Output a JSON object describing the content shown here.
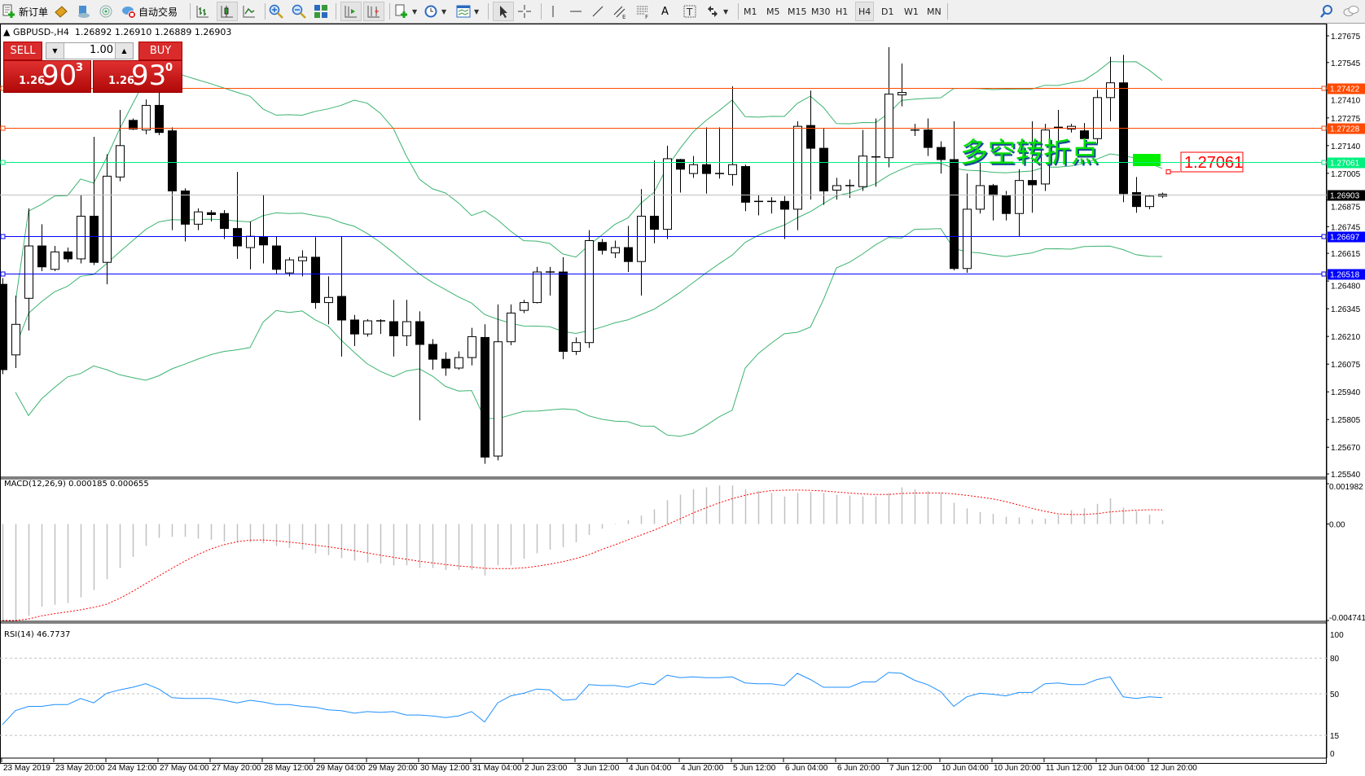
{
  "toolbar": {
    "new_order": {
      "label": "新订单",
      "icon": "new-order-icon"
    },
    "auto_trading": {
      "label": "自动交易",
      "icon": "auto-trading-icon"
    },
    "icons": [
      "market-watch-icon",
      "navigator-icon",
      "signals-icon",
      "bar-chart-icon",
      "candlestick-icon",
      "line-chart-icon",
      "zoom-in-icon",
      "zoom-out-icon",
      "tile-windows-icon",
      "chart-shift-icon",
      "autoscroll-icon",
      "indicators-icon",
      "periods-icon",
      "templates-icon",
      "cursor-icon",
      "crosshair-icon",
      "vertical-line-icon",
      "horizontal-line-icon",
      "trendline-icon",
      "equidistant-channel-icon",
      "fibonacci-icon",
      "text-icon",
      "text-label-icon",
      "arrows-icon",
      "search-icon",
      "chat-icon"
    ],
    "channel_sub": "E",
    "fibo_sub": "F",
    "text_glyph": "A",
    "label_glyph": "T",
    "timeframes": [
      "M1",
      "M5",
      "M15",
      "M30",
      "H1",
      "H4",
      "D1",
      "W1",
      "MN"
    ],
    "active_timeframe": "H4"
  },
  "header": {
    "symbol": "GBPUSD-,H4",
    "ohlc": "1.26892 1.26910 1.26889 1.26903"
  },
  "one_click": {
    "sell_label": "SELL",
    "buy_label": "BUY",
    "lot": "1.00",
    "sell": {
      "prefix": "1.26",
      "big": "90",
      "sup": "3"
    },
    "buy": {
      "prefix": "1.26",
      "big": "93",
      "sup": "0"
    }
  },
  "annotation": {
    "text": "多空转折点",
    "price_label": "1.27061",
    "color": "#00e000"
  },
  "macd_label": "MACD(12,26,9) 0.000185 0.000655",
  "rsi_label": "RSI(14) 46.7737",
  "chart_data": {
    "type": "candlestick",
    "symbol": "GBPUSD",
    "timeframe": "H4",
    "ylim": [
      1.2554,
      1.27675
    ],
    "price_ticks": [
      "1.27675",
      "1.27545",
      "1.27410",
      "1.27275",
      "1.27140",
      "1.27005",
      "1.26875",
      "1.26745",
      "1.26615",
      "1.26480",
      "1.26345",
      "1.26210",
      "1.26075",
      "1.25940",
      "1.25805",
      "1.25670",
      "1.25540"
    ],
    "time_labels": [
      "23 May 2019",
      "23 May 20:00",
      "24 May 12:00",
      "27 May 04:00",
      "27 May 20:00",
      "28 May 12:00",
      "29 May 04:00",
      "29 May 20:00",
      "30 May 12:00",
      "31 May 04:00",
      "2 Jun 23:00",
      "3 Jun 12:00",
      "4 Jun 04:00",
      "4 Jun 20:00",
      "5 Jun 12:00",
      "6 Jun 04:00",
      "6 Jun 20:00",
      "7 Jun 12:00",
      "10 Jun 04:00",
      "10 Jun 20:00",
      "11 Jun 12:00",
      "12 Jun 04:00",
      "12 Jun 20:00"
    ],
    "bars_per_time_label": 4,
    "ohlc": [
      [
        1.26464,
        1.26494,
        1.26026,
        1.26048
      ],
      [
        1.2612,
        1.26409,
        1.26056,
        1.26269
      ],
      [
        1.26396,
        1.26834,
        1.26239,
        1.26651
      ],
      [
        1.26651,
        1.26757,
        1.26528,
        1.26549
      ],
      [
        1.26537,
        1.26651,
        1.26528,
        1.26622
      ],
      [
        1.26622,
        1.26643,
        1.26571,
        1.26588
      ],
      [
        1.26588,
        1.26898,
        1.26566,
        1.26796
      ],
      [
        1.26796,
        1.27183,
        1.26558,
        1.26571
      ],
      [
        1.26571,
        1.27098,
        1.26464,
        1.26991
      ],
      [
        1.26987,
        1.27314,
        1.26966,
        1.2714
      ],
      [
        1.27263,
        1.27272,
        1.27216,
        1.27221
      ],
      [
        1.27216,
        1.27365,
        1.27195,
        1.27336
      ],
      [
        1.27336,
        1.27404,
        1.27191,
        1.27204
      ],
      [
        1.27212,
        1.27229,
        1.26728,
        1.26919
      ],
      [
        1.26919,
        1.26932,
        1.26673,
        1.26757
      ],
      [
        1.26757,
        1.26834,
        1.26728,
        1.26817
      ],
      [
        1.26813,
        1.26826,
        1.2677,
        1.26804
      ],
      [
        1.26809,
        1.26826,
        1.26685,
        1.26736
      ],
      [
        1.26736,
        1.27012,
        1.26588,
        1.26651
      ],
      [
        1.26643,
        1.2677,
        1.26537,
        1.26698
      ],
      [
        1.26694,
        1.26898,
        1.26566,
        1.26656
      ],
      [
        1.26651,
        1.26698,
        1.26515,
        1.26537
      ],
      [
        1.2652,
        1.26596,
        1.26503,
        1.26583
      ],
      [
        1.26579,
        1.2663,
        1.26503,
        1.26596
      ],
      [
        1.26596,
        1.26694,
        1.26345,
        1.26375
      ],
      [
        1.26375,
        1.26503,
        1.26269,
        1.264
      ],
      [
        1.26405,
        1.26698,
        1.26112,
        1.2629
      ],
      [
        1.2629,
        1.26315,
        1.26163,
        1.26222
      ],
      [
        1.26222,
        1.26294,
        1.26209,
        1.26286
      ],
      [
        1.26286,
        1.26294,
        1.26222,
        1.26286
      ],
      [
        1.26282,
        1.26388,
        1.26112,
        1.26213
      ],
      [
        1.26213,
        1.26388,
        1.26163,
        1.26282
      ],
      [
        1.26282,
        1.26332,
        1.25801,
        1.26171
      ],
      [
        1.26171,
        1.26197,
        1.26048,
        1.26099
      ],
      [
        1.26099,
        1.26133,
        1.26018,
        1.26056
      ],
      [
        1.26056,
        1.26137,
        1.26048,
        1.26107
      ],
      [
        1.26107,
        1.26252,
        1.26069,
        1.26209
      ],
      [
        1.26205,
        1.26269,
        1.25589,
        1.25622
      ],
      [
        1.25627,
        1.26366,
        1.25606,
        1.26184
      ],
      [
        1.26184,
        1.26366,
        1.26167,
        1.26324
      ],
      [
        1.26337,
        1.26388,
        1.26324,
        1.26375
      ],
      [
        1.26375,
        1.26549,
        1.26371,
        1.26524
      ],
      [
        1.26524,
        1.26549,
        1.26409,
        1.26524
      ],
      [
        1.26524,
        1.26596,
        1.26099,
        1.26137
      ],
      [
        1.26137,
        1.26205,
        1.2612,
        1.2618
      ],
      [
        1.2618,
        1.26728,
        1.26154,
        1.26677
      ],
      [
        1.26668,
        1.26685,
        1.26609,
        1.2663
      ],
      [
        1.26617,
        1.26677,
        1.26592,
        1.26643
      ],
      [
        1.26643,
        1.26749,
        1.26524,
        1.26575
      ],
      [
        1.26575,
        1.26928,
        1.26409,
        1.26796
      ],
      [
        1.26796,
        1.27068,
        1.26664,
        1.26732
      ],
      [
        1.26732,
        1.2714,
        1.26685,
        1.27076
      ],
      [
        1.27072,
        1.27076,
        1.26911,
        1.27025
      ],
      [
        1.27004,
        1.27089,
        1.26983,
        1.27047
      ],
      [
        1.27047,
        1.27229,
        1.26906,
        1.27004
      ],
      [
        1.27004,
        1.27229,
        1.26979,
        1.27004
      ],
      [
        1.26999,
        1.27429,
        1.26945,
        1.27047
      ],
      [
        1.27038,
        1.27047,
        1.26821,
        1.26864
      ],
      [
        1.26868,
        1.26898,
        1.268,
        1.26868
      ],
      [
        1.26868,
        1.26889,
        1.26809,
        1.26868
      ],
      [
        1.26868,
        1.26894,
        1.26685,
        1.2683
      ],
      [
        1.2683,
        1.27259,
        1.26728,
        1.27234
      ],
      [
        1.27238,
        1.27408,
        1.26877,
        1.27127
      ],
      [
        1.27127,
        1.27225,
        1.26851,
        1.26919
      ],
      [
        1.26923,
        1.26983,
        1.26877,
        1.26945
      ],
      [
        1.26945,
        1.26975,
        1.26885,
        1.26945
      ],
      [
        1.2694,
        1.27216,
        1.26919,
        1.27089
      ],
      [
        1.27085,
        1.27272,
        1.2694,
        1.27085
      ],
      [
        1.27081,
        1.2762,
        1.27034,
        1.27391
      ],
      [
        1.27387,
        1.2754,
        1.27331,
        1.27399
      ],
      [
        1.27216,
        1.27246,
        1.27187,
        1.27216
      ],
      [
        1.27216,
        1.27272,
        1.27089,
        1.27131
      ],
      [
        1.27131,
        1.27161,
        1.27004,
        1.27072
      ],
      [
        1.27072,
        1.27259,
        1.26532,
        1.26541
      ],
      [
        1.26541,
        1.27004,
        1.2652,
        1.2683
      ],
      [
        1.2683,
        1.27059,
        1.26809,
        1.26945
      ],
      [
        1.26945,
        1.26953,
        1.26775,
        1.26898
      ],
      [
        1.26898,
        1.26919,
        1.26775,
        1.26809
      ],
      [
        1.26809,
        1.27025,
        1.26698,
        1.2697
      ],
      [
        1.2697,
        1.27259,
        1.26813,
        1.26949
      ],
      [
        1.26953,
        1.27246,
        1.26919,
        1.27216
      ],
      [
        1.27229,
        1.27314,
        1.27131,
        1.27225
      ],
      [
        1.27221,
        1.27246,
        1.27204,
        1.27234
      ],
      [
        1.27212,
        1.2725,
        1.2714,
        1.27174
      ],
      [
        1.27174,
        1.27412,
        1.27149,
        1.27374
      ],
      [
        1.27374,
        1.27573,
        1.27259,
        1.27446
      ],
      [
        1.27446,
        1.27582,
        1.26864,
        1.26906
      ],
      [
        1.26911,
        1.26987,
        1.26813,
        1.26843
      ],
      [
        1.26843,
        1.26902,
        1.2683,
        1.26894
      ],
      [
        1.26894,
        1.26911,
        1.26885,
        1.26903
      ]
    ],
    "hlines": [
      {
        "price": 1.27422,
        "label": "1.27422",
        "color": "#ff4a00"
      },
      {
        "price": 1.27228,
        "label": "1.27228",
        "color": "#ff4a00"
      },
      {
        "price": 1.27061,
        "label": "1.27061",
        "color": "#00f080"
      },
      {
        "price": 1.26903,
        "label": "1.26903",
        "color": "#c0c0c0",
        "label_bg": "#000000"
      },
      {
        "price": 1.26697,
        "label": "1.26697",
        "color": "#0000ff"
      },
      {
        "price": 1.26518,
        "label": "1.26518",
        "color": "#0000ff"
      }
    ],
    "bollinger": {
      "period": 20,
      "deviation": 2,
      "color": "#3cb371"
    },
    "macd": {
      "ylim": [
        -0.004741,
        0.001982
      ],
      "tick_labels": [
        "0.001982",
        "0.00",
        "-0.004741"
      ],
      "hist_color": "#c0c0c0",
      "signal_color": "#ff0000",
      "main": [
        -0.00474,
        -0.00474,
        -0.00451,
        -0.00406,
        -0.00397,
        -0.00388,
        -0.00361,
        -0.00325,
        -0.00271,
        -0.00216,
        -0.00162,
        -0.00108,
        -0.00068,
        -0.00063,
        -0.00063,
        -0.00072,
        -0.00077,
        -0.00086,
        -0.0009,
        -0.0009,
        -0.00095,
        -0.00108,
        -0.00117,
        -0.00126,
        -0.00144,
        -0.00153,
        -0.00167,
        -0.0018,
        -0.00189,
        -0.00194,
        -0.00203,
        -0.00203,
        -0.00216,
        -0.00216,
        -0.00226,
        -0.00226,
        -0.00226,
        -0.00253,
        -0.00203,
        -0.00203,
        -0.00171,
        -0.00144,
        -0.00126,
        -0.00113,
        -0.0009,
        -0.00054,
        -0.00023,
        2e-05,
        0.00018,
        0.00041,
        0.00072,
        0.00117,
        0.00144,
        0.00171,
        0.0018,
        0.00189,
        0.00189,
        0.00171,
        0.00162,
        0.00153,
        0.00135,
        0.00153,
        0.00158,
        0.00153,
        0.00144,
        0.0014,
        0.00135,
        0.00135,
        0.00153,
        0.0018,
        0.00171,
        0.00162,
        0.00153,
        0.00104,
        0.00077,
        0.00059,
        0.0005,
        0.00036,
        0.00032,
        0.00023,
        0.00027,
        0.00045,
        0.00068,
        0.00077,
        0.00099,
        0.00126,
        0.00081,
        0.00063,
        0.00045,
        0.000185
      ]
    },
    "rsi": {
      "ylim": [
        0,
        100
      ],
      "levels": [
        80,
        50,
        15
      ],
      "tick_labels": [
        "100",
        "80",
        "50",
        "15",
        "0"
      ],
      "color": "#1e90ff",
      "values": [
        24.1,
        35.8,
        39.4,
        39.4,
        40.9,
        40.9,
        46.0,
        42.3,
        50.4,
        53.3,
        55.5,
        58.4,
        54.0,
        46.7,
        46.0,
        46.0,
        46.0,
        44.5,
        42.3,
        44.5,
        43.1,
        40.9,
        40.9,
        39.4,
        38.7,
        36.5,
        35.8,
        33.6,
        35.0,
        34.3,
        35.0,
        32.1,
        32.1,
        31.4,
        29.9,
        31.4,
        35.0,
        26.3,
        42.3,
        48.2,
        50.4,
        54.0,
        53.3,
        44.5,
        45.3,
        57.7,
        56.9,
        56.9,
        55.5,
        59.1,
        57.7,
        65.7,
        63.5,
        64.2,
        63.5,
        63.5,
        64.2,
        59.1,
        58.4,
        58.4,
        56.9,
        67.2,
        62.0,
        55.5,
        55.5,
        55.5,
        59.9,
        59.9,
        67.9,
        67.2,
        61.3,
        57.7,
        51.8,
        39.4,
        47.4,
        50.4,
        49.6,
        48.2,
        51.1,
        51.1,
        58.4,
        59.1,
        57.7,
        57.7,
        62.0,
        64.2,
        47.4,
        46.0,
        47.4,
        46.77
      ]
    }
  }
}
